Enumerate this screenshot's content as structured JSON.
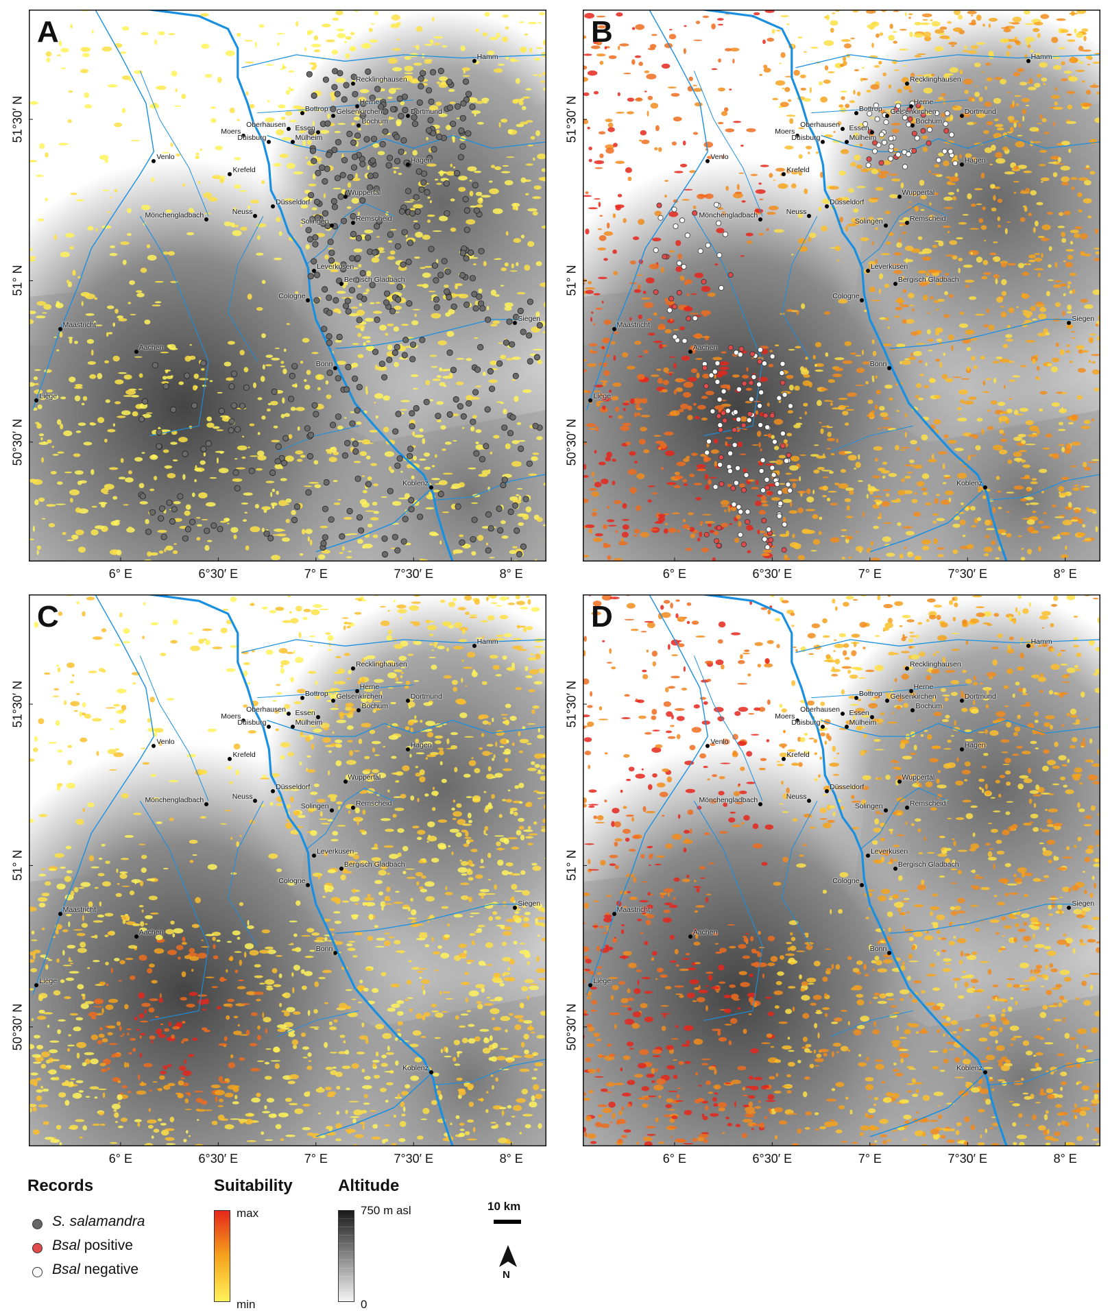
{
  "panels": [
    {
      "letter": "A",
      "suitability": "low",
      "records": "salamandra"
    },
    {
      "letter": "B",
      "suitability": "high",
      "records": "bsal"
    },
    {
      "letter": "C",
      "suitability": "mid",
      "records": "none"
    },
    {
      "letter": "D",
      "suitability": "high",
      "records": "none"
    }
  ],
  "axes": {
    "x_ticks": [
      "6° E",
      "6°30′ E",
      "7° E",
      "7°30′ E",
      "8° E"
    ],
    "x_tick_values": [
      6.0,
      6.5,
      7.0,
      7.5,
      8.0
    ],
    "y_ticks": [
      "51°30′ N",
      "51° N",
      "50°30′ N"
    ],
    "y_tick_values": [
      51.5,
      51.0,
      50.5
    ],
    "lon_range": [
      5.53,
      8.18
    ],
    "lat_range": [
      50.13,
      51.84
    ]
  },
  "cities": [
    {
      "name": "Hamm",
      "lon": 7.81,
      "lat": 51.68,
      "side": "right"
    },
    {
      "name": "Recklinghausen",
      "lon": 7.19,
      "lat": 51.61,
      "side": "right"
    },
    {
      "name": "Bottrop",
      "lon": 6.93,
      "lat": 51.52,
      "side": "right"
    },
    {
      "name": "Herne",
      "lon": 7.21,
      "lat": 51.54,
      "side": "right"
    },
    {
      "name": "Gelsenkirchen",
      "lon": 7.09,
      "lat": 51.51,
      "side": "right"
    },
    {
      "name": "Dortmund",
      "lon": 7.47,
      "lat": 51.51,
      "side": "right"
    },
    {
      "name": "Moers",
      "lon": 6.63,
      "lat": 51.45,
      "side": "left"
    },
    {
      "name": "Oberhausen",
      "lon": 6.86,
      "lat": 51.47,
      "side": "left"
    },
    {
      "name": "Essen",
      "lon": 7.01,
      "lat": 51.46,
      "side": "left"
    },
    {
      "name": "Bochum",
      "lon": 7.22,
      "lat": 51.48,
      "side": "right"
    },
    {
      "name": "Duisburg",
      "lon": 6.76,
      "lat": 51.43,
      "side": "left"
    },
    {
      "name": "Mülheim",
      "lon": 6.88,
      "lat": 51.43,
      "side": "right"
    },
    {
      "name": "Venlo",
      "lon": 6.17,
      "lat": 51.37,
      "side": "right"
    },
    {
      "name": "Krefeld",
      "lon": 6.56,
      "lat": 51.33,
      "side": "right"
    },
    {
      "name": "Hagen",
      "lon": 7.47,
      "lat": 51.36,
      "side": "right"
    },
    {
      "name": "Düsseldorf",
      "lon": 6.78,
      "lat": 51.23,
      "side": "right"
    },
    {
      "name": "Wuppertal",
      "lon": 7.15,
      "lat": 51.26,
      "side": "right"
    },
    {
      "name": "Mönchengladbach",
      "lon": 6.44,
      "lat": 51.19,
      "side": "left"
    },
    {
      "name": "Neuss",
      "lon": 6.69,
      "lat": 51.2,
      "side": "left"
    },
    {
      "name": "Solingen",
      "lon": 7.08,
      "lat": 51.17,
      "side": "left"
    },
    {
      "name": "Remscheid",
      "lon": 7.19,
      "lat": 51.18,
      "side": "right"
    },
    {
      "name": "Leverkusen",
      "lon": 6.99,
      "lat": 51.03,
      "side": "right"
    },
    {
      "name": "Bergisch Gladbach",
      "lon": 7.13,
      "lat": 50.99,
      "side": "right"
    },
    {
      "name": "Cologne",
      "lon": 6.96,
      "lat": 50.94,
      "side": "left"
    },
    {
      "name": "Maastricht",
      "lon": 5.69,
      "lat": 50.85,
      "side": "right"
    },
    {
      "name": "Siegen",
      "lon": 8.02,
      "lat": 50.87,
      "side": "right"
    },
    {
      "name": "Aachen",
      "lon": 6.08,
      "lat": 50.78,
      "side": "right"
    },
    {
      "name": "Bonn",
      "lon": 7.1,
      "lat": 50.73,
      "side": "left"
    },
    {
      "name": "Liège",
      "lon": 5.57,
      "lat": 50.63,
      "side": "right"
    },
    {
      "name": "Koblenz",
      "lon": 7.59,
      "lat": 50.36,
      "side": "left"
    }
  ],
  "legend": {
    "records_title": "Records",
    "records_items": [
      {
        "label_italic": "S. salamandra",
        "label_rest": "",
        "color": "#666666"
      },
      {
        "label_italic": "Bsal",
        "label_rest": " positive",
        "color": "#e04a4a"
      },
      {
        "label_italic": "Bsal",
        "label_rest": " negative",
        "color": "#ffffff"
      }
    ],
    "suitability_title": "Suitability",
    "suitability_max": "max",
    "suitability_min": "min",
    "altitude_title": "Altitude",
    "altitude_max": "750 m asl",
    "altitude_min": "0",
    "scale_label": "10 km",
    "north_label": "N"
  },
  "colors": {
    "river": "#1a8fe0",
    "suit_min": "#fff35a",
    "suit_mid": "#f6a31c",
    "suit_max": "#e5271b",
    "alt_low": "#f2f2f2",
    "alt_high": "#1a1a1a"
  }
}
